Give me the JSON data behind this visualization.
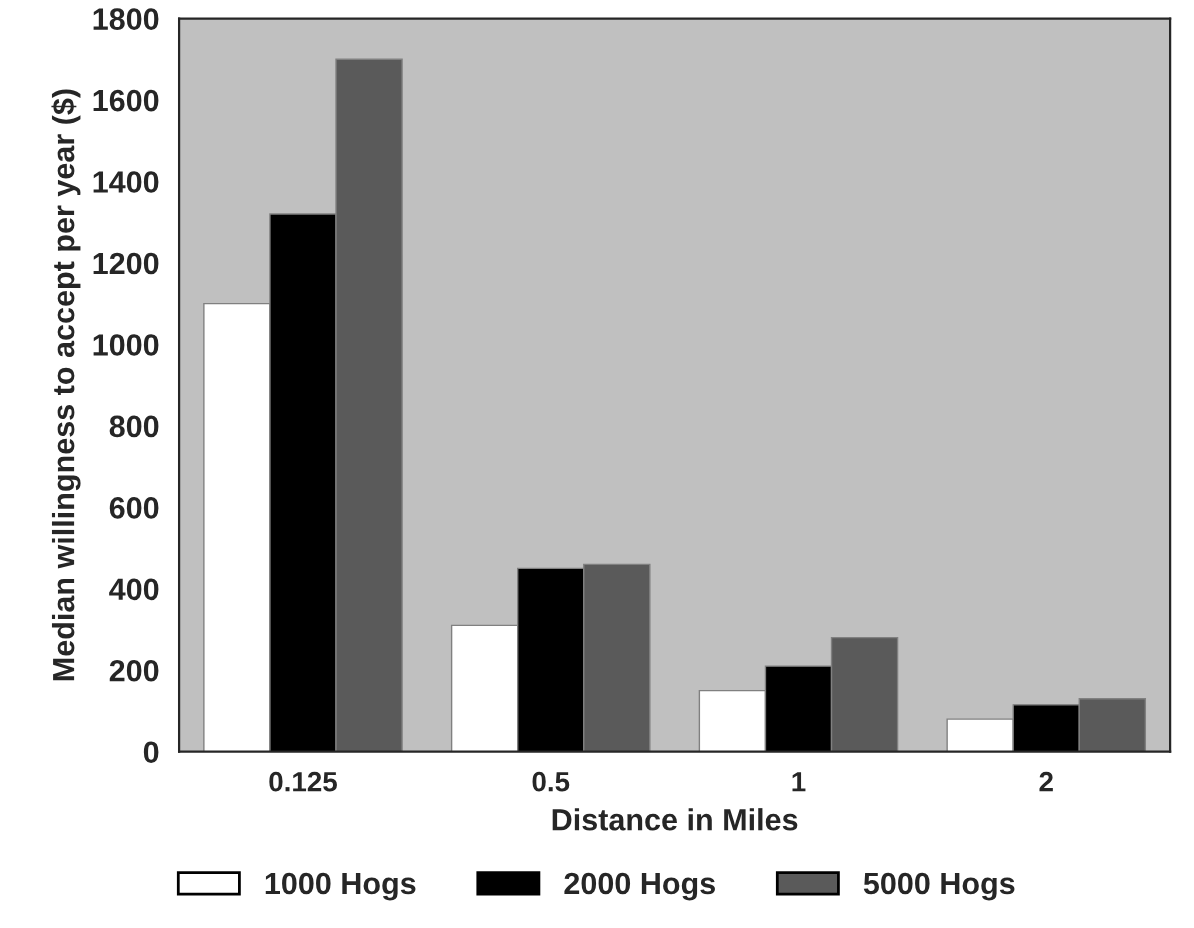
{
  "chart_data": {
    "type": "bar",
    "xlabel": "Distance in Miles",
    "ylabel": "Median willingness to accept per year ($)",
    "categories": [
      "0.125",
      "0.5",
      "1",
      "2"
    ],
    "series": [
      {
        "name": "1000 Hogs",
        "color": "#ffffff",
        "values": [
          1100,
          310,
          150,
          80
        ]
      },
      {
        "name": "2000 Hogs",
        "color": "#000000",
        "values": [
          1320,
          450,
          210,
          115
        ]
      },
      {
        "name": "5000 Hogs",
        "color": "#5a5a5a",
        "values": [
          1700,
          460,
          280,
          130
        ]
      }
    ],
    "ylim": [
      0,
      1800
    ],
    "yticks": [
      0,
      200,
      400,
      600,
      800,
      1000,
      1200,
      1400,
      1600,
      1800
    ],
    "grid": false,
    "legend": "bottom"
  }
}
